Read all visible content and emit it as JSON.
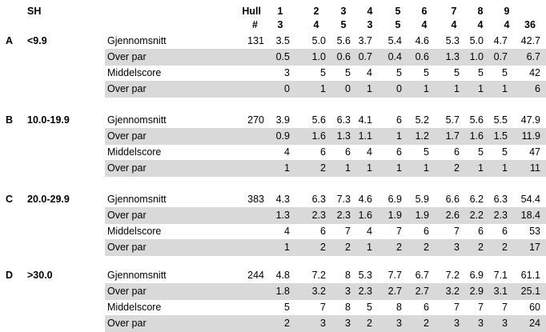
{
  "header": {
    "sh_label": "SH",
    "hull_label": "Hull",
    "count_label": "#",
    "hole_numbers": [
      "1",
      "2",
      "3",
      "4",
      "5",
      "6",
      "7",
      "8",
      "9",
      ""
    ],
    "pars": [
      "3",
      "4",
      "5",
      "3",
      "5",
      "4",
      "4",
      "4",
      "4",
      "36"
    ]
  },
  "groups": [
    {
      "letter": "A",
      "range": "<9.9",
      "count": "131",
      "rows": [
        {
          "label": "Gjennomsnitt",
          "values": [
            "3.5",
            "5.0",
            "5.6",
            "3.7",
            "5.4",
            "4.6",
            "5.3",
            "5.0",
            "4.7",
            "42.7"
          ]
        },
        {
          "label": "Over par",
          "values": [
            "0.5",
            "1.0",
            "0.6",
            "0.7",
            "0.4",
            "0.6",
            "1.3",
            "1.0",
            "0.7",
            "6.7"
          ]
        },
        {
          "label": "Middelscore",
          "values": [
            "3",
            "5",
            "5",
            "4",
            "5",
            "5",
            "5",
            "5",
            "5",
            "42"
          ]
        },
        {
          "label": "Over par",
          "values": [
            "0",
            "1",
            "0",
            "1",
            "0",
            "1",
            "1",
            "1",
            "1",
            "6"
          ]
        }
      ]
    },
    {
      "letter": "B",
      "range": "10.0-19.9",
      "count": "270",
      "rows": [
        {
          "label": "Gjennomsnitt",
          "values": [
            "3.9",
            "5.6",
            "6.3",
            "4.1",
            "6",
            "5.2",
            "5.7",
            "5.6",
            "5.5",
            "47.9"
          ]
        },
        {
          "label": "Over par",
          "values": [
            "0.9",
            "1.6",
            "1.3",
            "1.1",
            "1",
            "1.2",
            "1.7",
            "1.6",
            "1.5",
            "11.9"
          ]
        },
        {
          "label": "Middelscore",
          "values": [
            "4",
            "6",
            "6",
            "4",
            "6",
            "5",
            "6",
            "5",
            "5",
            "47"
          ]
        },
        {
          "label": "Over par",
          "values": [
            "1",
            "2",
            "1",
            "1",
            "1",
            "1",
            "2",
            "1",
            "1",
            "11"
          ]
        }
      ]
    },
    {
      "letter": "C",
      "range": "20.0-29.9",
      "count": "383",
      "rows": [
        {
          "label": "Gjennomsnitt",
          "values": [
            "4.3",
            "6.3",
            "7.3",
            "4.6",
            "6.9",
            "5.9",
            "6.6",
            "6.2",
            "6.3",
            "54.4"
          ]
        },
        {
          "label": "Over par",
          "values": [
            "1.3",
            "2.3",
            "2.3",
            "1.6",
            "1.9",
            "1.9",
            "2.6",
            "2.2",
            "2.3",
            "18.4"
          ]
        },
        {
          "label": "Middelscore",
          "values": [
            "4",
            "6",
            "7",
            "4",
            "7",
            "6",
            "7",
            "6",
            "6",
            "53"
          ]
        },
        {
          "label": "Over par",
          "values": [
            "1",
            "2",
            "2",
            "1",
            "2",
            "2",
            "3",
            "2",
            "2",
            "17"
          ]
        }
      ]
    },
    {
      "letter": "D",
      "range": ">30.0",
      "count": "244",
      "rows": [
        {
          "label": "Gjennomsnitt",
          "values": [
            "4.8",
            "7.2",
            "8",
            "5.3",
            "7.7",
            "6.7",
            "7.2",
            "6.9",
            "7.1",
            "61.1"
          ]
        },
        {
          "label": "Over par",
          "values": [
            "1.8",
            "3.2",
            "3",
            "2.3",
            "2.7",
            "2.7",
            "3.2",
            "2.9",
            "3.1",
            "25.1"
          ]
        },
        {
          "label": "Middelscore",
          "values": [
            "5",
            "7",
            "8",
            "5",
            "8",
            "6",
            "7",
            "7",
            "7",
            "60"
          ]
        },
        {
          "label": "Over par",
          "values": [
            "2",
            "3",
            "3",
            "2",
            "3",
            "2",
            "3",
            "3",
            "3",
            "24"
          ]
        }
      ]
    }
  ]
}
